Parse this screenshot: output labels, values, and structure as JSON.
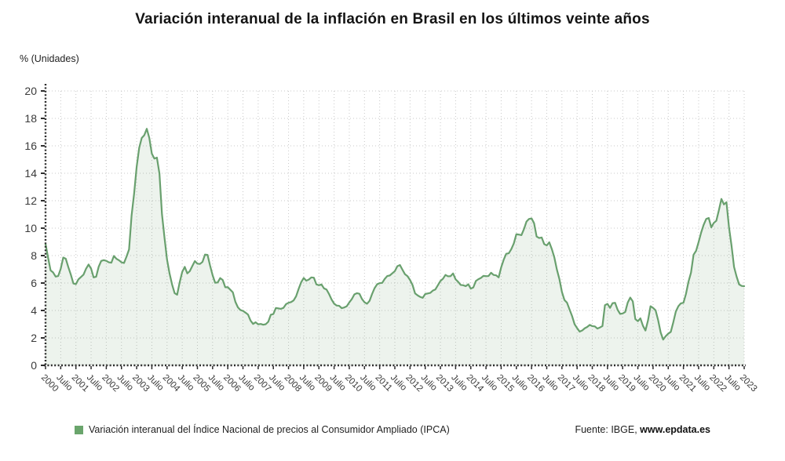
{
  "header": {
    "title": "Variación interanual de la inflación en Brasil en los últimos veinte años"
  },
  "axes": {
    "y_unit_label": "% (Unidades)"
  },
  "legend": {
    "series_label": "Variación interanual del Índice Nacional de precios al Consumidor Ampliado (IPCA)",
    "source_prefix": "Fuente: IBGE, ",
    "source_site": "www.epdata.es"
  },
  "colors": {
    "line": "#69a06e",
    "fill": "#69a06e",
    "fill_opacity": 0.12,
    "grid": "#c8c8c8",
    "axis": "#2d2d2d",
    "tick_text": "#3a3a3a",
    "legend_swatch": "#6aa56c"
  },
  "chart_data": {
    "type": "area",
    "title": "Variación interanual de la inflación en Brasil en los últimos veinte años",
    "ylabel": "% (Unidades)",
    "xlabel": "",
    "frequency": "monthly",
    "x_start": "2000-01",
    "x_end": "2023-01",
    "ylim": [
      0,
      20
    ],
    "yticks": [
      0,
      2,
      4,
      6,
      8,
      10,
      12,
      14,
      16,
      18,
      20
    ],
    "grid": true,
    "legend_position": "bottom",
    "x_tick_labels": [
      "2000",
      "Julio",
      "2001",
      "Julio",
      "2002",
      "Julio",
      "2003",
      "Julio",
      "2004",
      "Julio",
      "2005",
      "Julio",
      "2006",
      "Julio",
      "2007",
      "Julio",
      "2008",
      "Julio",
      "2009",
      "Julio",
      "2010",
      "Julio",
      "2011",
      "Julio",
      "2012",
      "Julio",
      "2013",
      "Julio",
      "2014",
      "Julio",
      "2015",
      "Julio",
      "2016",
      "Julio",
      "2017",
      "Julio",
      "2018",
      "Julio",
      "2019",
      "Julio",
      "2020",
      "Julio",
      "2021",
      "Julio",
      "2022",
      "Julio",
      "2023"
    ],
    "months_per_tick": 6,
    "series": [
      {
        "name": "Variación interanual del Índice Nacional de precios al Consumidor Ampliado (IPCA)",
        "values": [
          8.85,
          7.86,
          6.92,
          6.77,
          6.47,
          6.51,
          7.04,
          7.86,
          7.77,
          7.16,
          6.61,
          5.97,
          5.92,
          6.27,
          6.44,
          6.61,
          7.04,
          7.35,
          7.05,
          6.41,
          6.46,
          7.19,
          7.61,
          7.67,
          7.62,
          7.51,
          7.48,
          7.97,
          7.77,
          7.66,
          7.51,
          7.46,
          7.93,
          8.45,
          10.93,
          12.53,
          14.47,
          15.85,
          16.57,
          16.77,
          17.24,
          16.57,
          15.43,
          15.07,
          15.14,
          13.98,
          11.02,
          9.3,
          7.71,
          6.69,
          5.89,
          5.26,
          5.15,
          6.06,
          6.81,
          7.18,
          6.7,
          6.87,
          7.24,
          7.6,
          7.41,
          7.39,
          7.54,
          8.07,
          8.05,
          7.27,
          6.57,
          6.02,
          6.04,
          6.36,
          6.22,
          5.69,
          5.7,
          5.51,
          5.32,
          4.63,
          4.23,
          4.03,
          3.97,
          3.84,
          3.7,
          3.26,
          3.02,
          3.14,
          2.99,
          3.02,
          2.96,
          3.0,
          3.18,
          3.69,
          3.74,
          4.18,
          4.15,
          4.12,
          4.19,
          4.46,
          4.56,
          4.61,
          4.73,
          5.04,
          5.58,
          6.06,
          6.37,
          6.17,
          6.25,
          6.41,
          6.39,
          5.9,
          5.84,
          5.9,
          5.61,
          5.53,
          5.2,
          4.8,
          4.5,
          4.36,
          4.34,
          4.17,
          4.22,
          4.31,
          4.59,
          4.83,
          5.17,
          5.26,
          5.22,
          4.84,
          4.6,
          4.49,
          4.7,
          5.2,
          5.63,
          5.91,
          5.99,
          6.01,
          6.3,
          6.51,
          6.55,
          6.71,
          6.87,
          7.23,
          7.31,
          6.97,
          6.64,
          6.5,
          6.22,
          5.85,
          5.24,
          5.1,
          4.99,
          4.92,
          5.2,
          5.24,
          5.28,
          5.45,
          5.53,
          5.84,
          6.15,
          6.31,
          6.59,
          6.49,
          6.5,
          6.7,
          6.27,
          6.09,
          5.86,
          5.84,
          5.77,
          5.91,
          5.59,
          5.68,
          6.15,
          6.28,
          6.37,
          6.52,
          6.5,
          6.51,
          6.75,
          6.59,
          6.56,
          6.41,
          7.14,
          7.7,
          8.13,
          8.17,
          8.47,
          8.89,
          9.56,
          9.53,
          9.49,
          9.93,
          10.48,
          10.67,
          10.71,
          10.36,
          9.39,
          9.28,
          9.32,
          8.84,
          8.74,
          8.97,
          8.48,
          7.87,
          6.99,
          6.29,
          5.35,
          4.76,
          4.57,
          4.08,
          3.6,
          3.0,
          2.71,
          2.46,
          2.54,
          2.7,
          2.8,
          2.95,
          2.86,
          2.84,
          2.68,
          2.76,
          2.86,
          4.39,
          4.48,
          4.19,
          4.53,
          4.56,
          4.05,
          3.75,
          3.78,
          3.89,
          4.58,
          4.94,
          4.66,
          3.37,
          3.22,
          3.43,
          2.89,
          2.54,
          3.27,
          4.31,
          4.19,
          4.01,
          3.3,
          2.4,
          1.88,
          2.13,
          2.31,
          2.44,
          3.14,
          3.92,
          4.31,
          4.52,
          4.56,
          5.2,
          6.1,
          6.76,
          8.06,
          8.35,
          8.99,
          9.68,
          10.25,
          10.67,
          10.74,
          10.06,
          10.38,
          10.54,
          11.3,
          12.13,
          11.73,
          11.89,
          10.07,
          8.73,
          7.17,
          6.47,
          5.9,
          5.79,
          5.77
        ]
      }
    ]
  }
}
